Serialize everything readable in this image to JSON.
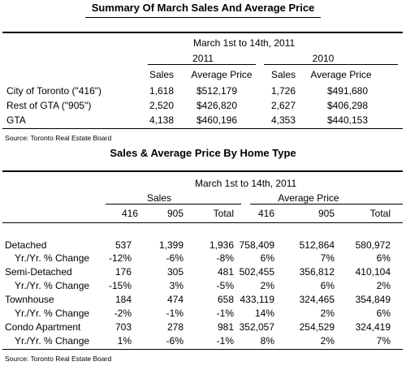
{
  "table1": {
    "title": "Summary Of March Sales And Average Price",
    "period": "March 1st to 14th, 2011",
    "years": [
      "2011",
      "2010"
    ],
    "columns": [
      "Sales",
      "Average Price",
      "Sales",
      "Average Price"
    ],
    "rows": [
      {
        "label": "City of Toronto (\"416\")",
        "values": [
          "1,618",
          "$512,179",
          "1,726",
          "$491,680"
        ]
      },
      {
        "label": "Rest of GTA (\"905\")",
        "values": [
          "2,520",
          "$426,820",
          "2,627",
          "$406,298"
        ]
      },
      {
        "label": "GTA",
        "values": [
          "4,138",
          "$460,196",
          "4,353",
          "$440,153"
        ]
      }
    ],
    "source": "Source: Toronto Real Estate Board"
  },
  "table2": {
    "title": "Sales & Average Price  By Home Type",
    "period": "March 1st to 14th, 2011",
    "groups": [
      "Sales",
      "Average Price"
    ],
    "columns": [
      "416",
      "905",
      "Total",
      "416",
      "905",
      "Total"
    ],
    "rows": [
      {
        "label": "Detached",
        "values": [
          "537",
          "1,399",
          "1,936",
          "758,409",
          "512,864",
          "580,972"
        ]
      },
      {
        "label": "Yr./Yr. % Change",
        "values": [
          "-12%",
          "-6%",
          "-8%",
          "6%",
          "7%",
          "6%"
        ]
      },
      {
        "label": "Semi-Detached",
        "values": [
          "176",
          "305",
          "481",
          "502,455",
          "356,812",
          "410,104"
        ]
      },
      {
        "label": "Yr./Yr. % Change",
        "values": [
          "-15%",
          "3%",
          "-5%",
          "2%",
          "6%",
          "2%"
        ]
      },
      {
        "label": "Townhouse",
        "values": [
          "184",
          "474",
          "658",
          "433,119",
          "324,465",
          "354,849"
        ]
      },
      {
        "label": "Yr./Yr. % Change",
        "values": [
          "-2%",
          "-1%",
          "-1%",
          "14%",
          "2%",
          "6%"
        ]
      },
      {
        "label": "Condo Apartment",
        "values": [
          "703",
          "278",
          "981",
          "352,057",
          "254,529",
          "324,419"
        ]
      },
      {
        "label": "Yr./Yr. % Change",
        "values": [
          "1%",
          "-6%",
          "-1%",
          "8%",
          "2%",
          "7%"
        ]
      }
    ],
    "source": "Source: Toronto Real Estate Board"
  }
}
